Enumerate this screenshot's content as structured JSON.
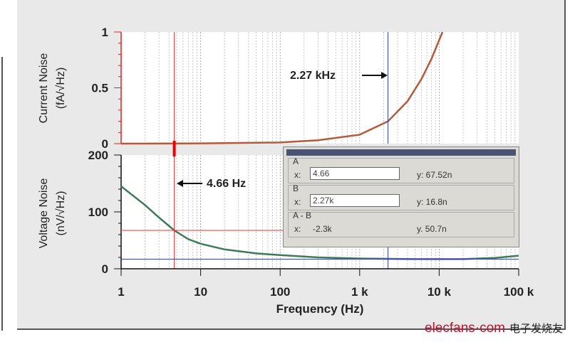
{
  "chart_data": [
    {
      "type": "line",
      "ylabel": "Current Noise (fA/√Hz)",
      "ylim": [
        0,
        1
      ],
      "yticks": [
        "0",
        "0.5",
        "1"
      ],
      "xscale": "log",
      "xlim": [
        1,
        100000
      ],
      "series": [
        {
          "color": "#b5593a",
          "x": [
            1,
            10,
            100,
            300,
            1000,
            2270,
            4000,
            6000,
            8000,
            11000
          ],
          "y": [
            0,
            0.002,
            0.01,
            0.03,
            0.08,
            0.2,
            0.38,
            0.58,
            0.76,
            1.0
          ]
        }
      ],
      "annotation": "2.27 kHz"
    },
    {
      "type": "line",
      "ylabel": "Voltage Noise (nV/√Hz)",
      "ylim": [
        0,
        200
      ],
      "yticks": [
        "0",
        "100",
        "200"
      ],
      "xscale": "log",
      "xlim": [
        1,
        100000
      ],
      "xlabel": "Frequency (Hz)",
      "xticks": [
        "1",
        "10",
        "100",
        "1 k",
        "10 k",
        "100 k"
      ],
      "series": [
        {
          "color": "#3d7a5a",
          "x": [
            1,
            2,
            3,
            4.66,
            7,
            10,
            20,
            50,
            100,
            300,
            1000,
            5000,
            20000,
            50000,
            100000
          ],
          "y": [
            145,
            112,
            90,
            67.5,
            52,
            44,
            34,
            27,
            24,
            20,
            18,
            17,
            17,
            19,
            23
          ]
        }
      ],
      "annotation": "4.66 Hz",
      "grid": true
    }
  ],
  "cursors": {
    "a_x": "4.66",
    "a_y": "y: 67.52n",
    "b_x": "2.27k",
    "b_y": "y: 16.8n",
    "ab_x": "-2.3k",
    "ab_y": "y. 50.7n",
    "label_a": "A",
    "label_b": "B",
    "label_ab": "A - B",
    "x_label": "x:"
  },
  "labels": {
    "current_l1": "Current Noise",
    "current_l2": "(fA/√Hz)",
    "voltage_l1": "Voltage Noise",
    "voltage_l2": "(nV/√Hz)",
    "xlabel": "Frequency (Hz)",
    "ann_b": "2.27 kHz",
    "ann_a": "4.66 Hz"
  },
  "logo": {
    "en": "elecfans·com",
    "cn": "电子发烧友"
  }
}
